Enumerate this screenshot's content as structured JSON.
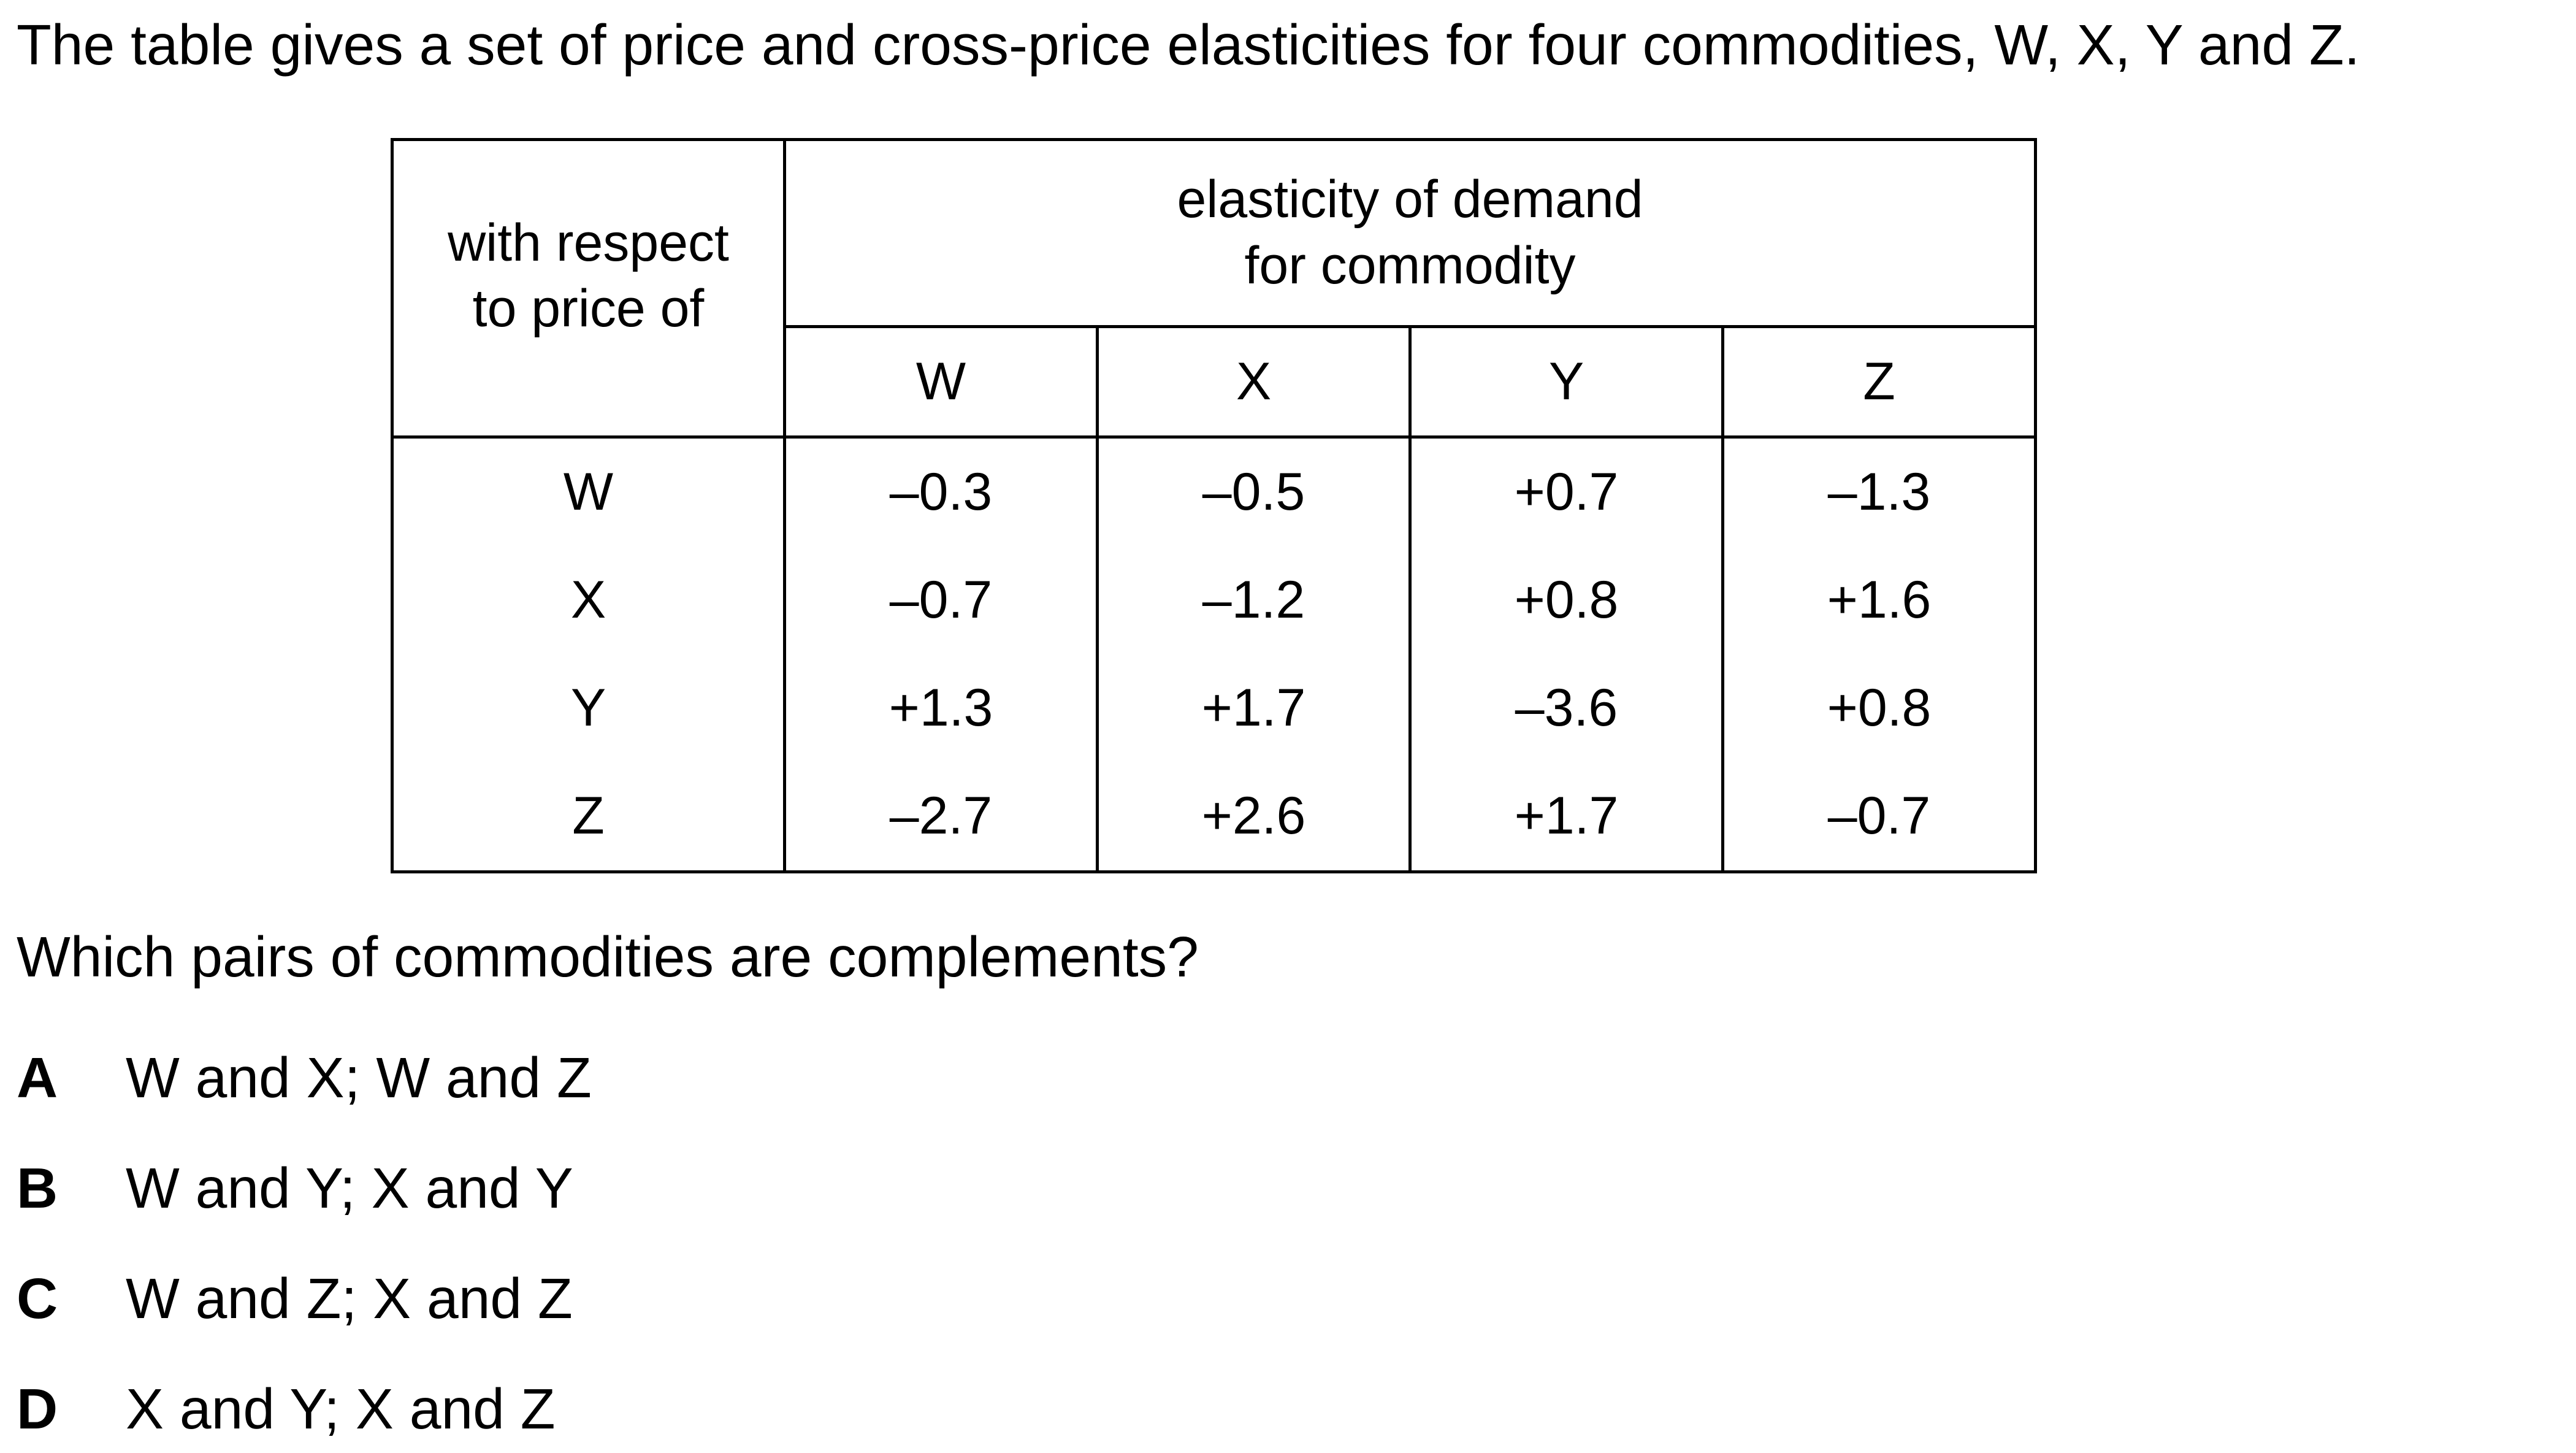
{
  "intro": "The table gives a set of price and cross-price elasticities for four commodities, W, X, Y and Z.",
  "table": {
    "row_header": [
      "with respect",
      "to price of"
    ],
    "column_group_header": [
      "elasticity of demand",
      "for commodity"
    ],
    "columns": [
      "W",
      "X",
      "Y",
      "Z"
    ],
    "rows": [
      {
        "label": "W",
        "values": [
          "–0.3",
          "–0.5",
          "+0.7",
          "–1.3"
        ]
      },
      {
        "label": "X",
        "values": [
          "–0.7",
          "–1.2",
          "+0.8",
          "+1.6"
        ]
      },
      {
        "label": "Y",
        "values": [
          "+1.3",
          "+1.7",
          "–3.6",
          "+0.8"
        ]
      },
      {
        "label": "Z",
        "values": [
          "–2.7",
          "+2.6",
          "+1.7",
          "–0.7"
        ]
      }
    ]
  },
  "question": "Which pairs of commodities are complements?",
  "options": [
    {
      "letter": "A",
      "text": "W and X; W and Z"
    },
    {
      "letter": "B",
      "text": "W and Y; X and Y"
    },
    {
      "letter": "C",
      "text": "W and Z; X and Z"
    },
    {
      "letter": "D",
      "text": "X and Y; X and Z"
    }
  ]
}
